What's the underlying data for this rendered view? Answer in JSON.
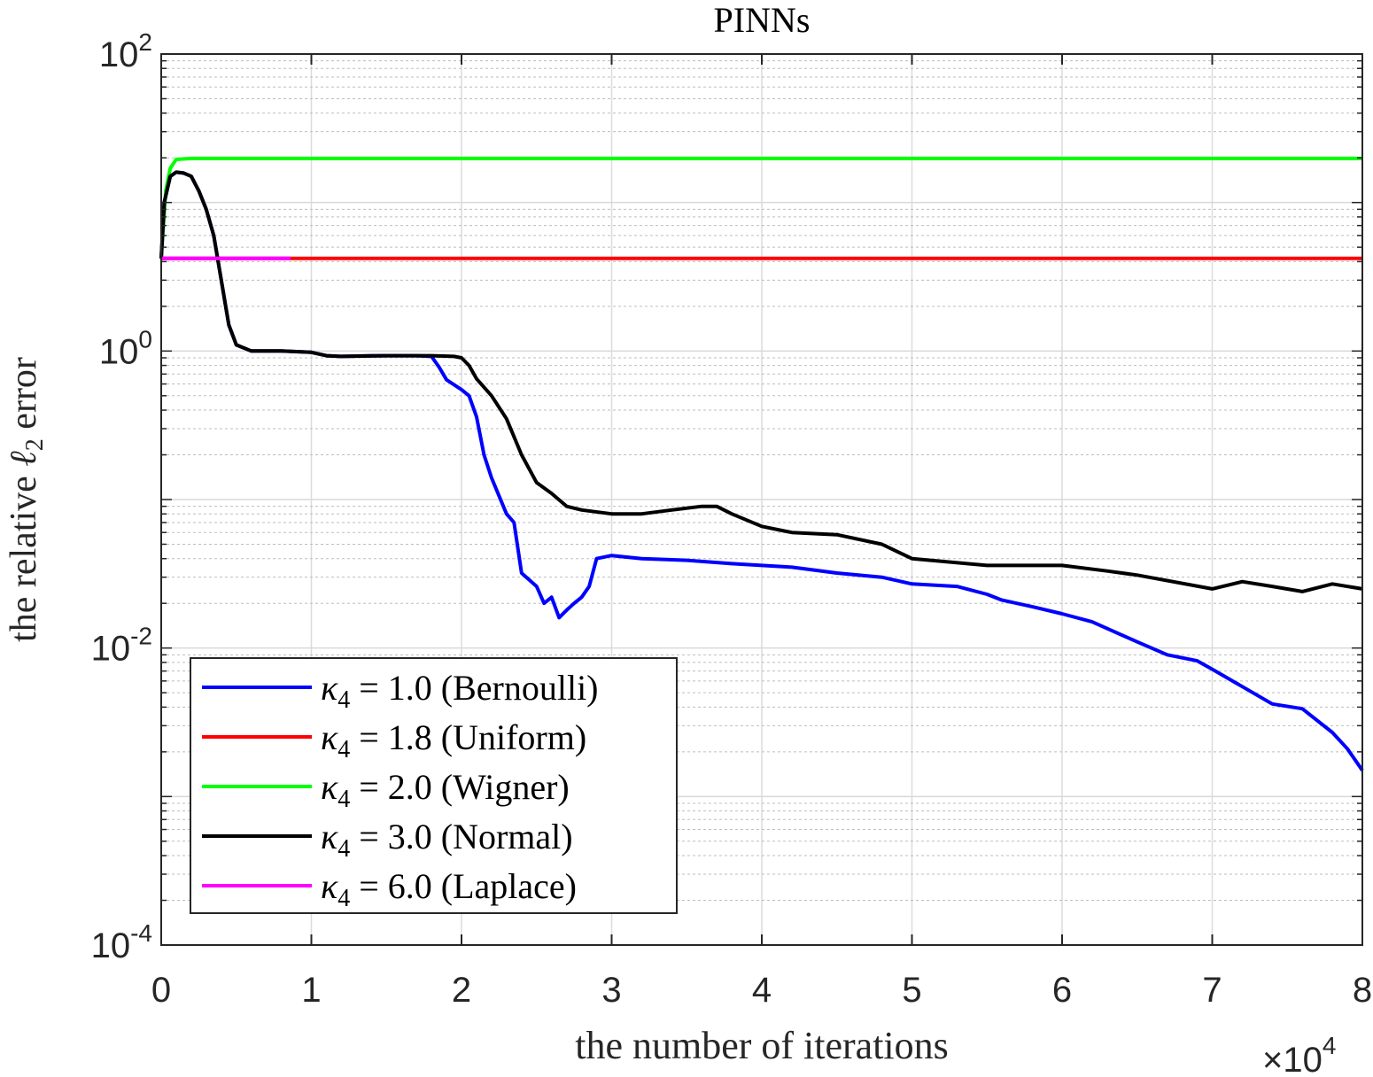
{
  "chart_data": {
    "type": "line",
    "title": "PINNs",
    "xlabel": "the number of iterations",
    "ylabel_prefix": "the relative ",
    "ylabel_symbol": "ℓ",
    "ylabel_sub": "2",
    "ylabel_suffix": " error",
    "x_multiplier_label": "×10",
    "x_multiplier_exp": "4",
    "xlim": [
      0,
      8
    ],
    "yscale": "log",
    "ylim": [
      0.0001,
      100
    ],
    "grid": true,
    "legend_position": "bottom-left",
    "x_ticks": [
      {
        "value": 0,
        "label": "0"
      },
      {
        "value": 1,
        "label": "1"
      },
      {
        "value": 2,
        "label": "2"
      },
      {
        "value": 3,
        "label": "3"
      },
      {
        "value": 4,
        "label": "4"
      },
      {
        "value": 5,
        "label": "5"
      },
      {
        "value": 6,
        "label": "6"
      },
      {
        "value": 7,
        "label": "7"
      },
      {
        "value": 8,
        "label": "8"
      }
    ],
    "y_ticks": [
      {
        "value": 100,
        "base": "10",
        "exp": "2"
      },
      {
        "value": 1,
        "base": "10",
        "exp": "0"
      },
      {
        "value": 0.01,
        "base": "10",
        "exp": "-2"
      },
      {
        "value": 0.0001,
        "base": "10",
        "exp": "-4"
      }
    ],
    "series": [
      {
        "name": "κ4 = 1.0 (Bernoulli)",
        "label_kappa": "κ",
        "label_sub": "4",
        "label_rest": " = 1.0 (Bernoulli)",
        "color": "#0000ff",
        "x": [
          0,
          0.02,
          0.06,
          0.1,
          0.15,
          0.2,
          0.25,
          0.3,
          0.35,
          0.4,
          0.45,
          0.5,
          0.6,
          0.8,
          1.0,
          1.1,
          1.2,
          1.4,
          1.6,
          1.7,
          1.8,
          1.85,
          1.9,
          2.0,
          2.05,
          2.1,
          2.15,
          2.2,
          2.3,
          2.35,
          2.4,
          2.5,
          2.55,
          2.6,
          2.65,
          2.7,
          2.75,
          2.8,
          2.85,
          2.9,
          3.0,
          3.2,
          3.5,
          3.8,
          4.0,
          4.2,
          4.5,
          4.8,
          5.0,
          5.3,
          5.5,
          5.6,
          5.8,
          6.0,
          6.2,
          6.5,
          6.7,
          6.9,
          7.0,
          7.2,
          7.4,
          7.6,
          7.8,
          7.9,
          8.0
        ],
        "y": [
          4.2,
          10,
          15,
          16,
          15.8,
          15,
          12,
          9,
          6,
          3,
          1.5,
          1.1,
          1.0,
          1.0,
          0.98,
          0.93,
          0.92,
          0.93,
          0.93,
          0.93,
          0.92,
          0.78,
          0.64,
          0.55,
          0.5,
          0.36,
          0.2,
          0.14,
          0.08,
          0.07,
          0.032,
          0.026,
          0.02,
          0.022,
          0.016,
          0.018,
          0.02,
          0.022,
          0.026,
          0.04,
          0.042,
          0.04,
          0.039,
          0.037,
          0.036,
          0.035,
          0.032,
          0.03,
          0.027,
          0.026,
          0.023,
          0.021,
          0.019,
          0.017,
          0.015,
          0.011,
          0.009,
          0.0082,
          0.0072,
          0.0055,
          0.0042,
          0.0039,
          0.0027,
          0.0021,
          0.0015
        ]
      },
      {
        "name": "κ4 = 1.8 (Uniform)",
        "label_kappa": "κ",
        "label_sub": "4",
        "label_rest": " = 1.8 (Uniform)",
        "color": "#ff0000",
        "x": [
          0,
          8
        ],
        "y": [
          4.2,
          4.2
        ]
      },
      {
        "name": "κ4 = 2.0 (Wigner)",
        "label_kappa": "κ",
        "label_sub": "4",
        "label_rest": " = 2.0 (Wigner)",
        "color": "#00ff00",
        "x": [
          0,
          0.03,
          0.06,
          0.1,
          0.2,
          1,
          4,
          8
        ],
        "y": [
          4.2,
          12,
          17,
          19.5,
          19.8,
          19.8,
          19.8,
          19.8
        ]
      },
      {
        "name": "κ4 = 3.0 (Normal)",
        "label_kappa": "κ",
        "label_sub": "4",
        "label_rest": " = 3.0 (Normal)",
        "color": "#000000",
        "x": [
          0,
          0.02,
          0.06,
          0.1,
          0.15,
          0.2,
          0.25,
          0.3,
          0.35,
          0.4,
          0.45,
          0.5,
          0.6,
          0.8,
          1.0,
          1.1,
          1.2,
          1.5,
          1.8,
          1.95,
          2.0,
          2.05,
          2.1,
          2.2,
          2.3,
          2.4,
          2.5,
          2.6,
          2.7,
          2.8,
          3.0,
          3.2,
          3.4,
          3.6,
          3.7,
          3.8,
          4.0,
          4.2,
          4.5,
          4.8,
          5.0,
          5.5,
          6.0,
          6.3,
          6.5,
          7.0,
          7.2,
          7.4,
          7.6,
          7.8,
          8.0
        ],
        "y": [
          4.2,
          10,
          15,
          16,
          15.8,
          15,
          12,
          9,
          6,
          3,
          1.5,
          1.1,
          1.0,
          1.0,
          0.98,
          0.93,
          0.92,
          0.93,
          0.93,
          0.92,
          0.9,
          0.8,
          0.65,
          0.5,
          0.35,
          0.2,
          0.13,
          0.11,
          0.09,
          0.085,
          0.08,
          0.08,
          0.085,
          0.09,
          0.09,
          0.08,
          0.066,
          0.06,
          0.058,
          0.05,
          0.04,
          0.036,
          0.036,
          0.033,
          0.031,
          0.025,
          0.028,
          0.026,
          0.024,
          0.027,
          0.025
        ]
      },
      {
        "name": "κ4 = 6.0 (Laplace)",
        "label_kappa": "κ",
        "label_sub": "4",
        "label_rest": " = 6.0 (Laplace)",
        "color": "#ff00ff",
        "x": [
          0,
          0.86
        ],
        "y": [
          4.2,
          4.2
        ]
      }
    ]
  }
}
